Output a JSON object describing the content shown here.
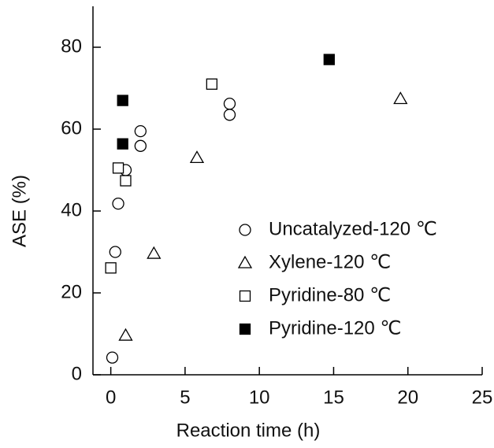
{
  "chart_data": {
    "type": "scatter",
    "xlabel": "Reaction time (h)",
    "ylabel": "ASE (%)",
    "xlim": [
      -1.2,
      25
    ],
    "ylim": [
      0,
      90
    ],
    "xticks": [
      0,
      5,
      10,
      15,
      20,
      25
    ],
    "yticks": [
      0,
      20,
      40,
      60,
      80
    ],
    "legend": "lower right",
    "series": [
      {
        "name": "Uncatalyzed-120 ℃",
        "color": "#000000",
        "marker": "circle",
        "filled": false,
        "x": [
          0.1,
          0.3,
          0.5,
          1,
          2,
          2,
          8,
          8
        ],
        "values": [
          4.2,
          30,
          41.8,
          50,
          59.5,
          55.9,
          66.2,
          63.5
        ]
      },
      {
        "name": "Xylene-120 ℃",
        "color": "#000000",
        "marker": "triangle",
        "filled": false,
        "x": [
          1,
          2.9,
          5.8,
          19.5
        ],
        "values": [
          9.6,
          29.6,
          53,
          67.4
        ]
      },
      {
        "name": "Pyridine-80 ℃",
        "color": "#000000",
        "marker": "square",
        "filled": false,
        "x": [
          0,
          0.5,
          1,
          6.8
        ],
        "values": [
          26.1,
          50.5,
          47.4,
          71
        ]
      },
      {
        "name": "Pyridine-120 ℃",
        "color": "#000000",
        "marker": "square",
        "filled": true,
        "x": [
          0.8,
          0.8,
          14.7
        ],
        "values": [
          67,
          56.4,
          77
        ]
      }
    ]
  }
}
